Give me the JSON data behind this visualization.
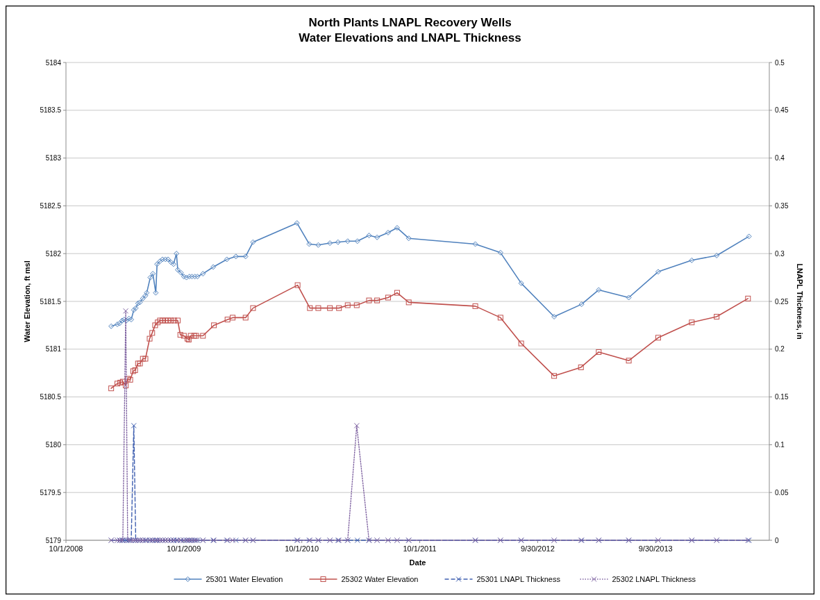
{
  "chart_data": {
    "type": "line",
    "title": "North Plants LNAPL Recovery Wells",
    "subtitle": "Water Elevations and LNAPL Thickness",
    "xlabel": "Date",
    "ylabel": "Water Elevation, ft msl",
    "y2label": "LNAPL Thickness, in",
    "xlim": [
      "2008-10-01",
      "2014-09-17"
    ],
    "xticks": [
      {
        "value": "2008-10-01",
        "label": "10/1/2008"
      },
      {
        "value": "2009-10-01",
        "label": "10/1/2009"
      },
      {
        "value": "2010-10-01",
        "label": "10/1/2010"
      },
      {
        "value": "2011-10-01",
        "label": "10/1/2011"
      },
      {
        "value": "2012-09-30",
        "label": "9/30/2012"
      },
      {
        "value": "2013-09-30",
        "label": "9/30/2013"
      }
    ],
    "ylim": [
      5179,
      5184
    ],
    "yticks": [
      5179,
      5179.5,
      5180,
      5180.5,
      5181,
      5181.5,
      5182,
      5182.5,
      5183,
      5183.5,
      5184
    ],
    "y2lim": [
      0,
      0.5
    ],
    "y2ticks": [
      0,
      0.05,
      0.1,
      0.15,
      0.2,
      0.25,
      0.3,
      0.35,
      0.4,
      0.45,
      0.5
    ],
    "grid": "y",
    "legend": "bottom",
    "series": [
      {
        "name": "25301 Water Elevation",
        "color": "#4f81bd",
        "marker": "diamond",
        "line_style": "solid",
        "x": [
          "2009-02-18",
          "2009-03-09",
          "2009-03-16",
          "2009-03-24",
          "2009-03-30",
          "2009-04-06",
          "2009-04-14",
          "2009-04-21",
          "2009-04-29",
          "2009-05-05",
          "2009-05-12",
          "2009-05-18",
          "2009-05-27",
          "2009-06-04",
          "2009-06-08",
          "2009-06-19",
          "2009-06-27",
          "2009-07-06",
          "2009-07-10",
          "2009-07-19",
          "2009-07-27",
          "2009-08-05",
          "2009-08-13",
          "2009-08-22",
          "2009-08-30",
          "2009-09-08",
          "2009-09-12",
          "2009-09-22",
          "2009-10-01",
          "2009-10-09",
          "2009-10-18",
          "2009-10-26",
          "2009-11-04",
          "2009-11-12",
          "2009-11-29",
          "2009-12-31",
          "2010-02-11",
          "2010-03-11",
          "2010-04-10",
          "2010-05-03",
          "2010-09-16",
          "2010-10-24",
          "2010-11-21",
          "2010-12-27",
          "2011-01-21",
          "2011-02-20",
          "2011-03-22",
          "2011-04-27",
          "2011-05-22",
          "2011-06-25",
          "2011-07-23",
          "2011-08-28",
          "2012-03-21",
          "2012-06-07",
          "2012-08-10",
          "2012-11-20",
          "2013-02-13",
          "2013-04-07",
          "2013-07-09",
          "2013-10-08",
          "2014-01-20",
          "2014-04-07",
          "2014-07-16"
        ],
        "values": [
          5181.24,
          5181.26,
          5181.27,
          5181.3,
          5181.31,
          5181.3,
          5181.32,
          5181.31,
          5181.41,
          5181.43,
          5181.48,
          5181.49,
          5181.53,
          5181.56,
          5181.59,
          5181.75,
          5181.79,
          5181.59,
          5181.89,
          5181.92,
          5181.94,
          5181.94,
          5181.94,
          5181.91,
          5181.89,
          5182.0,
          5181.83,
          5181.8,
          5181.76,
          5181.75,
          5181.76,
          5181.76,
          5181.76,
          5181.76,
          5181.79,
          5181.86,
          5181.94,
          5181.97,
          5181.97,
          5182.12,
          5182.32,
          5182.1,
          5182.09,
          5182.11,
          5182.12,
          5182.13,
          5182.13,
          5182.19,
          5182.17,
          5182.22,
          5182.27,
          5182.16,
          5182.1,
          5182.01,
          5181.69,
          5181.34,
          5181.47,
          5181.62,
          5181.54,
          5181.81,
          5181.93,
          5181.98,
          5182.18
        ]
      },
      {
        "name": "25302 Water Elevation",
        "color": "#c0504d",
        "marker": "square",
        "line_style": "solid",
        "x": [
          "2009-02-18",
          "2009-03-09",
          "2009-03-18",
          "2009-03-26",
          "2009-04-04",
          "2009-04-10",
          "2009-04-18",
          "2009-04-27",
          "2009-05-03",
          "2009-05-12",
          "2009-05-18",
          "2009-05-27",
          "2009-06-04",
          "2009-06-17",
          "2009-06-25",
          "2009-07-04",
          "2009-07-12",
          "2009-07-19",
          "2009-07-27",
          "2009-08-05",
          "2009-08-13",
          "2009-08-22",
          "2009-09-01",
          "2009-09-12",
          "2009-09-20",
          "2009-10-01",
          "2009-10-12",
          "2009-10-16",
          "2009-10-22",
          "2009-11-02",
          "2009-11-08",
          "2009-11-29",
          "2010-01-02",
          "2010-02-13",
          "2010-03-01",
          "2010-04-10",
          "2010-05-03",
          "2010-09-18",
          "2010-10-26",
          "2010-11-21",
          "2010-12-27",
          "2011-01-24",
          "2011-02-20",
          "2011-03-20",
          "2011-04-27",
          "2011-05-22",
          "2011-06-25",
          "2011-07-23",
          "2011-08-28",
          "2012-03-21",
          "2012-06-07",
          "2012-08-10",
          "2012-11-20",
          "2013-02-11",
          "2013-04-07",
          "2013-07-09",
          "2013-10-08",
          "2014-01-20",
          "2014-04-07",
          "2014-07-13"
        ],
        "values": [
          5180.59,
          5180.64,
          5180.65,
          5180.66,
          5180.62,
          5180.69,
          5180.68,
          5180.77,
          5180.78,
          5180.85,
          5180.85,
          5180.9,
          5180.9,
          5181.11,
          5181.17,
          5181.25,
          5181.28,
          5181.3,
          5181.3,
          5181.3,
          5181.3,
          5181.3,
          5181.3,
          5181.3,
          5181.15,
          5181.14,
          5181.11,
          5181.1,
          5181.14,
          5181.14,
          5181.14,
          5181.14,
          5181.25,
          5181.31,
          5181.33,
          5181.33,
          5181.43,
          5181.67,
          5181.43,
          5181.43,
          5181.43,
          5181.43,
          5181.46,
          5181.46,
          5181.51,
          5181.51,
          5181.54,
          5181.59,
          5181.49,
          5181.45,
          5181.33,
          5181.06,
          5180.72,
          5180.81,
          5180.97,
          5180.88,
          5181.12,
          5181.28,
          5181.34,
          5181.53
        ]
      },
      {
        "name": "25301 LNAPL Thickness",
        "color": "#3f5fb0",
        "marker": "cross",
        "line_style": "dashed",
        "axis": "y2",
        "x": [
          "2009-02-18",
          "2009-03-09",
          "2009-03-16",
          "2009-03-24",
          "2009-03-30",
          "2009-04-06",
          "2009-04-14",
          "2009-04-21",
          "2009-04-29",
          "2009-05-05",
          "2009-05-12",
          "2009-05-18",
          "2009-05-27",
          "2009-06-04",
          "2009-06-08",
          "2009-06-19",
          "2009-06-27",
          "2009-07-06",
          "2009-07-10",
          "2009-07-19",
          "2009-07-27",
          "2009-08-05",
          "2009-08-13",
          "2009-08-22",
          "2009-08-30",
          "2009-09-08",
          "2009-09-12",
          "2009-09-22",
          "2009-10-01",
          "2009-10-09",
          "2009-10-18",
          "2009-10-26",
          "2009-11-04",
          "2009-11-12",
          "2009-11-29",
          "2009-12-31",
          "2010-02-11",
          "2010-03-11",
          "2010-04-10",
          "2010-05-03",
          "2010-09-16",
          "2010-10-24",
          "2010-11-21",
          "2010-12-27",
          "2011-01-21",
          "2011-02-20",
          "2011-03-22",
          "2011-04-27",
          "2011-05-22",
          "2011-06-25",
          "2011-07-23",
          "2011-08-28",
          "2012-03-21",
          "2012-06-07",
          "2012-08-10",
          "2012-11-20",
          "2013-02-13",
          "2013-04-07",
          "2013-07-09",
          "2013-10-08",
          "2014-01-20",
          "2014-04-07",
          "2014-07-16"
        ],
        "values": [
          0,
          0,
          0,
          0,
          0,
          0,
          0,
          0,
          0.12,
          0,
          0,
          0,
          0,
          0,
          0,
          0,
          0,
          0,
          0,
          0,
          0,
          0,
          0,
          0,
          0,
          0,
          0,
          0,
          0,
          0,
          0,
          0,
          0,
          0,
          0,
          0,
          0,
          0,
          0,
          0,
          0,
          0,
          0,
          0,
          0,
          0,
          0,
          0,
          0,
          0,
          0,
          0,
          0,
          0,
          0,
          0,
          0,
          0,
          0,
          0,
          0,
          0,
          0
        ]
      },
      {
        "name": "25302 LNAPL Thickness",
        "color": "#8064a2",
        "marker": "cross",
        "line_style": "dotted",
        "axis": "y2",
        "x": [
          "2009-02-18",
          "2009-03-09",
          "2009-03-18",
          "2009-03-26",
          "2009-04-04",
          "2009-04-10",
          "2009-04-18",
          "2009-04-27",
          "2009-05-03",
          "2009-05-12",
          "2009-05-18",
          "2009-05-27",
          "2009-06-04",
          "2009-06-17",
          "2009-06-25",
          "2009-07-04",
          "2009-07-12",
          "2009-07-19",
          "2009-07-27",
          "2009-08-05",
          "2009-08-13",
          "2009-08-22",
          "2009-09-01",
          "2009-09-12",
          "2009-09-20",
          "2009-10-01",
          "2009-10-12",
          "2009-10-16",
          "2009-10-22",
          "2009-11-02",
          "2009-11-08",
          "2009-11-29",
          "2010-01-02",
          "2010-02-13",
          "2010-03-01",
          "2010-04-10",
          "2010-05-03",
          "2010-09-18",
          "2010-10-26",
          "2010-11-21",
          "2010-12-27",
          "2011-01-24",
          "2011-02-20",
          "2011-03-20",
          "2011-04-27",
          "2011-05-22",
          "2011-06-25",
          "2011-07-23",
          "2011-08-28",
          "2012-03-21",
          "2012-06-07",
          "2012-08-10",
          "2012-11-20",
          "2013-02-11",
          "2013-04-07",
          "2013-07-09",
          "2013-10-08",
          "2014-01-20",
          "2014-04-07",
          "2014-07-13"
        ],
        "values": [
          0,
          0,
          0,
          0,
          0.24,
          0,
          0,
          0,
          0,
          0,
          0,
          0,
          0,
          0,
          0,
          0,
          0,
          0,
          0,
          0,
          0,
          0,
          0,
          0,
          0,
          0,
          0,
          0,
          0,
          0,
          0,
          0,
          0,
          0,
          0,
          0,
          0,
          0,
          0,
          0,
          0,
          0,
          0,
          0.12,
          0,
          0,
          0,
          0,
          0,
          0,
          0,
          0,
          0,
          0,
          0,
          0,
          0,
          0,
          0,
          0
        ]
      }
    ]
  }
}
